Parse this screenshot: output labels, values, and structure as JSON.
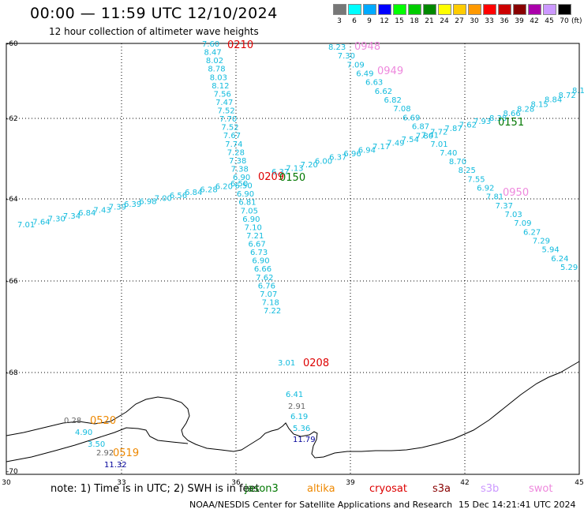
{
  "header": {
    "title": "00:00 — 11:59 UTC 12/10/2024",
    "subtitle": "12 hour collection of altimeter wave heights"
  },
  "legend": {
    "unit": "(ft)",
    "bins": [
      {
        "label": "3",
        "color": "#777777"
      },
      {
        "label": "6",
        "color": "#00ffff"
      },
      {
        "label": "9",
        "color": "#00aaff"
      },
      {
        "label": "12",
        "color": "#0000ff"
      },
      {
        "label": "15",
        "color": "#00ff00"
      },
      {
        "label": "18",
        "color": "#00cc00"
      },
      {
        "label": "21",
        "color": "#008800"
      },
      {
        "label": "24",
        "color": "#ffff00"
      },
      {
        "label": "27",
        "color": "#ffcc00"
      },
      {
        "label": "30",
        "color": "#ff9900"
      },
      {
        "label": "33",
        "color": "#ff0000"
      },
      {
        "label": "36",
        "color": "#cc0000"
      },
      {
        "label": "39",
        "color": "#880000"
      },
      {
        "label": "42",
        "color": "#aa00aa"
      },
      {
        "label": "45",
        "color": "#cc99ff"
      },
      {
        "label": "70",
        "color": "#000000"
      }
    ]
  },
  "axes": {
    "lon_ticks": [
      "30",
      "33",
      "36",
      "39",
      "42",
      "45"
    ],
    "lat_ticks": [
      "-60",
      "-62",
      "-64",
      "-66",
      "-68",
      "-70"
    ]
  },
  "colors": {
    "swh_value": "#11bbdd",
    "time_red": "#dd0000",
    "time_green": "#007700",
    "time_pink": "#ee88dd",
    "time_orange": "#ee8800",
    "gray_value": "#666666",
    "navy_value": "#000099"
  },
  "tracks": [
    {
      "time": "0210",
      "time_color": "red",
      "values": [
        "7.60",
        "8.47",
        "8.02",
        "8.78",
        "8.03",
        "8.12",
        "7.56",
        "7.47",
        "7.52",
        "7.70",
        "7.52",
        "7.67",
        "7.74",
        "7.28",
        "7.38",
        "7.38",
        "6.90",
        "6.50",
        "6.90",
        "6.81",
        "7.05",
        "6.90",
        "7.10",
        "7.21",
        "6.67",
        "6.73",
        "6.90",
        "6.66",
        "7.62",
        "6.76",
        "7.07",
        "7.18",
        "7.22"
      ]
    },
    {
      "time": "0209",
      "time_color": "red",
      "values": [
        "7.01",
        "7.64",
        "7.30",
        "7.34",
        "6.84",
        "7.43",
        "7.39",
        "6.39",
        "6.98",
        "7.00",
        "6.56",
        "6.84",
        "6.28",
        "6.20",
        "6.50"
      ]
    },
    {
      "time": "0150",
      "time_color": "green",
      "values": [
        "6.37",
        "7.13",
        "7.20",
        "6.00",
        "6.37",
        "6.96",
        "6.94",
        "7.17",
        "7.49",
        "7.54",
        "7.80",
        "7.72",
        "7.87",
        "7.62",
        "7.93"
      ]
    },
    {
      "time": "0151",
      "time_color": "green",
      "values": [
        "8.38",
        "8.66",
        "8.28",
        "8.15",
        "8.84",
        "8.72",
        "8.1"
      ]
    },
    {
      "time": "0948",
      "time_color": "pink",
      "values": [
        "8.23",
        "7.30",
        "7.09",
        "6.49",
        "6.63",
        "6.62",
        "6.82",
        "7.08",
        "6.69",
        "6.87",
        "7.41",
        "7.01",
        "7.40",
        "8.70",
        "8.25",
        "7.55",
        "6.92",
        "7.81",
        "7.37",
        "7.03",
        "7.09",
        "6.27",
        "7.29",
        "5.94",
        "6.24",
        "5.29"
      ]
    },
    {
      "time": "0949",
      "time_color": "pink",
      "values": []
    },
    {
      "time": "0950",
      "time_color": "pink",
      "values": []
    },
    {
      "time": "0208",
      "time_color": "red",
      "values": [
        "3.01",
        "6.41",
        "2.91",
        "6.19",
        "5.36",
        "11.79"
      ]
    },
    {
      "time": "0520",
      "time_color": "orange",
      "values": [
        "0.28",
        "4.90",
        "3.50"
      ]
    },
    {
      "time": "0519",
      "time_color": "orange",
      "values": [
        "2.92",
        "11.32"
      ]
    }
  ],
  "note": {
    "prefix": "note: 1) Time is in UTC; 2) SWH is in feet",
    "sats": [
      {
        "name": "jason3",
        "color": "#007700"
      },
      {
        "name": "altika",
        "color": "#ee8800"
      },
      {
        "name": "cryosat",
        "color": "#dd0000"
      },
      {
        "name": "s3a",
        "color": "#880000"
      },
      {
        "name": "s3b",
        "color": "#cc99ff"
      },
      {
        "name": "swot",
        "color": "#ee88dd"
      }
    ]
  },
  "footer": {
    "credit": "NOAA/NESDIS Center for Satellite Applications and Research",
    "generated": "15 Dec 14:21:41 UTC 2024"
  }
}
